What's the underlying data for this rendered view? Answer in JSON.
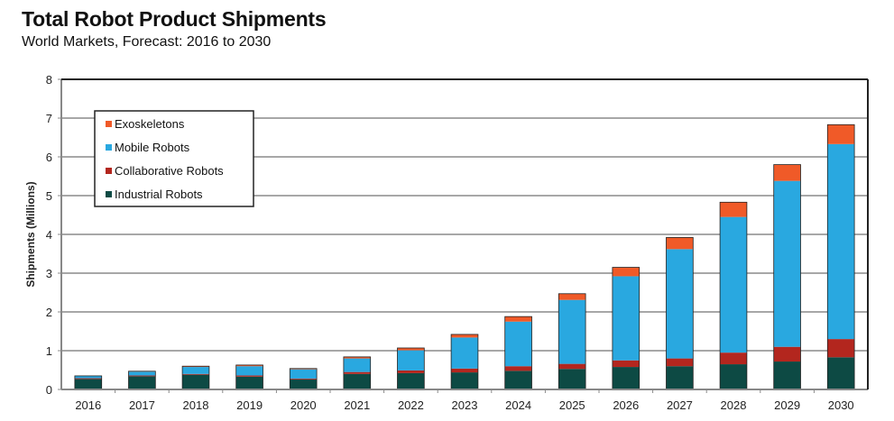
{
  "chart_data": {
    "type": "bar",
    "stacked": true,
    "title": "Total Robot Product Shipments",
    "subtitle": "World Markets, Forecast: 2016 to 2030",
    "xlabel": "",
    "ylabel": "Shipments (Millions)",
    "ylim": [
      0,
      8
    ],
    "yticks": [
      "0",
      "1",
      "2",
      "3",
      "4",
      "5",
      "6",
      "7",
      "8"
    ],
    "grid": true,
    "legend_position": "top-left",
    "categories": [
      "2016",
      "2017",
      "2018",
      "2019",
      "2020",
      "2021",
      "2022",
      "2023",
      "2024",
      "2025",
      "2026",
      "2027",
      "2028",
      "2029",
      "2030"
    ],
    "series": [
      {
        "name": "Industrial Robots",
        "color": "#0d4a44",
        "values": [
          0.27,
          0.34,
          0.38,
          0.33,
          0.26,
          0.4,
          0.42,
          0.44,
          0.48,
          0.53,
          0.58,
          0.6,
          0.65,
          0.72,
          0.83
        ]
      },
      {
        "name": "Collaborative Robots",
        "color": "#b3261e",
        "values": [
          0.02,
          0.02,
          0.02,
          0.03,
          0.02,
          0.05,
          0.07,
          0.1,
          0.12,
          0.13,
          0.17,
          0.2,
          0.3,
          0.38,
          0.47
        ]
      },
      {
        "name": "Mobile Robots",
        "color": "#29a8e0",
        "values": [
          0.06,
          0.1,
          0.18,
          0.24,
          0.24,
          0.35,
          0.52,
          0.8,
          1.15,
          1.65,
          2.17,
          2.82,
          3.5,
          4.28,
          5.03
        ]
      },
      {
        "name": "Exoskeletons",
        "color": "#f05a28",
        "values": [
          0.0,
          0.01,
          0.02,
          0.03,
          0.02,
          0.04,
          0.06,
          0.08,
          0.13,
          0.16,
          0.23,
          0.3,
          0.38,
          0.42,
          0.5
        ]
      }
    ],
    "legend_order": [
      "Exoskeletons",
      "Mobile Robots",
      "Collaborative Robots",
      "Industrial Robots"
    ]
  }
}
